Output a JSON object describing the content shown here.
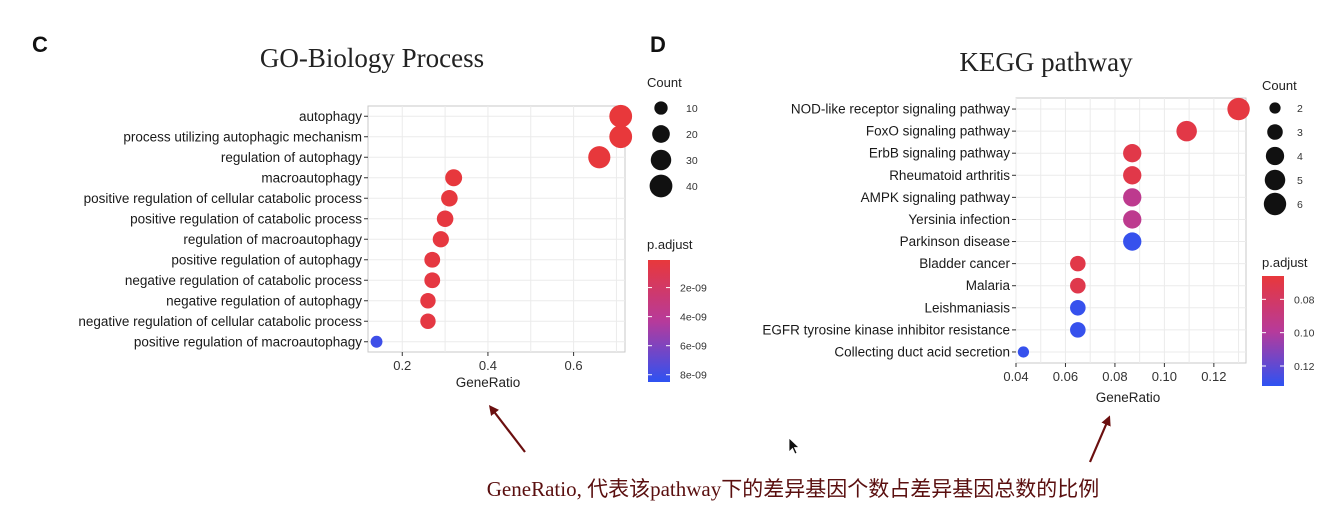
{
  "panel_c": {
    "letter": "C"
  },
  "panel_d": {
    "letter": "D"
  },
  "caption": {
    "text": "GeneRatio, 代表该pathway下的差异基因个数占差异基因总数的比例"
  },
  "colors": {
    "low": "#e8383b",
    "high": "#2e52f2",
    "grid": "#ebebeb",
    "arrow": "#6b0f0f",
    "caption": "#5a0f0f"
  },
  "chart_data": [
    {
      "type": "scatter",
      "title": "GO-Biology Process",
      "xlabel": "GeneRatio",
      "ylabel": "",
      "xlim": [
        0.12,
        0.72
      ],
      "xticks": [
        0.2,
        0.4,
        0.6
      ],
      "xtick_labels": [
        "0.2",
        "0.4",
        "0.6"
      ],
      "categories": [
        "autophagy",
        "process utilizing autophagic mechanism",
        "regulation of autophagy",
        "macroautophagy",
        "positive regulation of cellular catabolic process",
        "positive regulation of catabolic process",
        "regulation of macroautophagy",
        "positive regulation of autophagy",
        "negative regulation of catabolic process",
        "negative regulation of autophagy",
        "negative regulation of cellular catabolic process",
        "positive regulation of macroautophagy"
      ],
      "gene_ratio": [
        0.71,
        0.71,
        0.66,
        0.32,
        0.31,
        0.3,
        0.29,
        0.27,
        0.27,
        0.26,
        0.26,
        0.14
      ],
      "count": [
        40,
        40,
        37,
        18,
        17,
        17,
        16,
        15,
        15,
        14,
        14,
        8
      ],
      "p_adjust": [
        1e-10,
        1e-10,
        1.5e-10,
        2e-10,
        2.5e-10,
        3e-10,
        3e-10,
        3.5e-10,
        4e-10,
        4e-10,
        4.5e-10,
        8e-09
      ],
      "legend_count": {
        "title": "Count",
        "values": [
          10,
          20,
          30,
          40
        ],
        "labels": [
          "10",
          "20",
          "30",
          "40"
        ]
      },
      "legend_color": {
        "title": "p.adjust",
        "range": [
          1e-10,
          8.5e-09
        ],
        "ticks": [
          2e-09,
          4e-09,
          6e-09,
          8e-09
        ],
        "labels": [
          "2e-09",
          "4e-09",
          "6e-09",
          "8e-09"
        ]
      },
      "grid": true,
      "legend_position": "right"
    },
    {
      "type": "scatter",
      "title": "KEGG pathway",
      "xlabel": "GeneRatio",
      "ylabel": "",
      "xlim": [
        0.04,
        0.133
      ],
      "xticks": [
        0.04,
        0.06,
        0.08,
        0.1,
        0.12
      ],
      "xtick_labels": [
        "0.04",
        "0.06",
        "0.08",
        "0.10",
        "0.12"
      ],
      "categories": [
        "NOD-like receptor signaling pathway",
        "FoxO signaling pathway",
        "ErbB signaling pathway",
        "Rheumatoid arthritis",
        "AMPK signaling pathway",
        "Yersinia infection",
        "Parkinson disease",
        "Bladder cancer",
        "Malaria",
        "Leishmaniasis",
        "EGFR tyrosine kinase inhibitor resistance",
        "Collecting duct acid secretion"
      ],
      "gene_ratio": [
        0.13,
        0.109,
        0.087,
        0.087,
        0.087,
        0.087,
        0.087,
        0.065,
        0.065,
        0.065,
        0.065,
        0.043
      ],
      "count": [
        6,
        5,
        4,
        4,
        4,
        4,
        4,
        3,
        3,
        3,
        3,
        2
      ],
      "p_adjust": [
        0.068,
        0.07,
        0.071,
        0.071,
        0.095,
        0.095,
        0.13,
        0.071,
        0.072,
        0.13,
        0.13,
        0.13
      ],
      "legend_count": {
        "title": "Count",
        "values": [
          2,
          3,
          4,
          5,
          6
        ],
        "labels": [
          "2",
          "3",
          "4",
          "5",
          "6"
        ]
      },
      "legend_color": {
        "title": "p.adjust",
        "range": [
          0.066,
          0.132
        ],
        "ticks": [
          0.08,
          0.1,
          0.12
        ],
        "labels": [
          "0.08",
          "0.10",
          "0.12"
        ]
      },
      "grid": true,
      "legend_position": "right"
    }
  ]
}
